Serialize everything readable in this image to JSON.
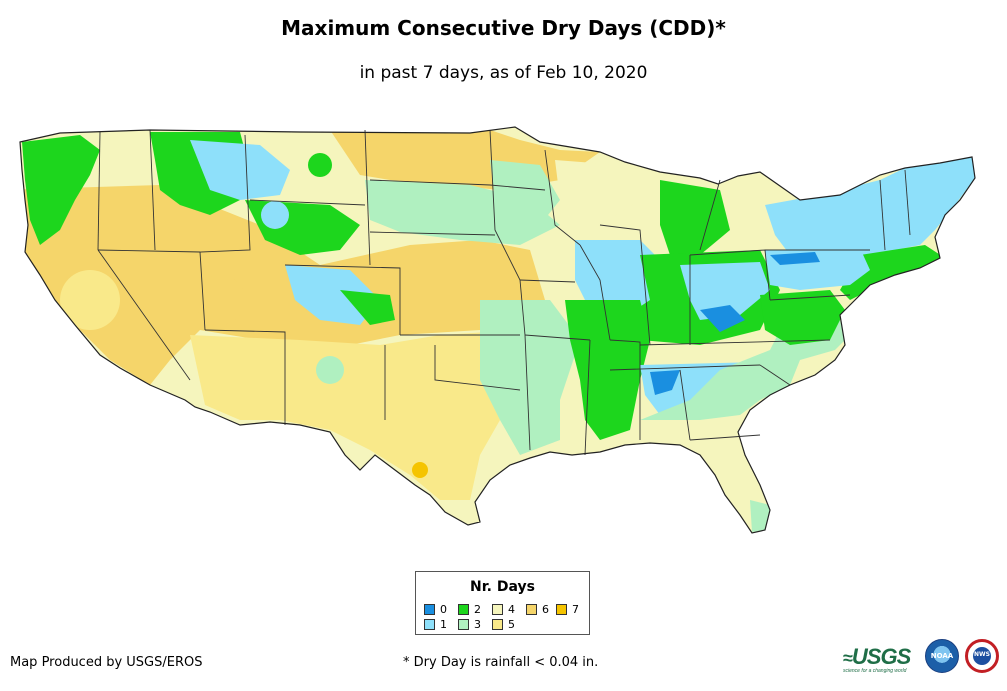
{
  "title": "Maximum Consecutive Dry Days (CDD)*",
  "subtitle": "in past 7 days, as of Feb 10, 2020",
  "legend": {
    "title": "Nr. Days",
    "items": [
      {
        "label": "0",
        "color": "#1a8fe0"
      },
      {
        "label": "1",
        "color": "#8ee0fa"
      },
      {
        "label": "2",
        "color": "#1dd61d"
      },
      {
        "label": "3",
        "color": "#b0f0c0"
      },
      {
        "label": "4",
        "color": "#f5f5bd"
      },
      {
        "label": "5",
        "color": "#f9e98a"
      },
      {
        "label": "6",
        "color": "#f5d56a"
      },
      {
        "label": "7",
        "color": "#f5c400"
      }
    ]
  },
  "footer": {
    "credit": "Map Produced by USGS/EROS",
    "footnote": "* Dry Day is rainfall < 0.04 in."
  },
  "logos": {
    "usgs": "USGS",
    "usgs_tagline": "science for a changing world",
    "noaa": "NOAA",
    "nws": "NWS"
  }
}
